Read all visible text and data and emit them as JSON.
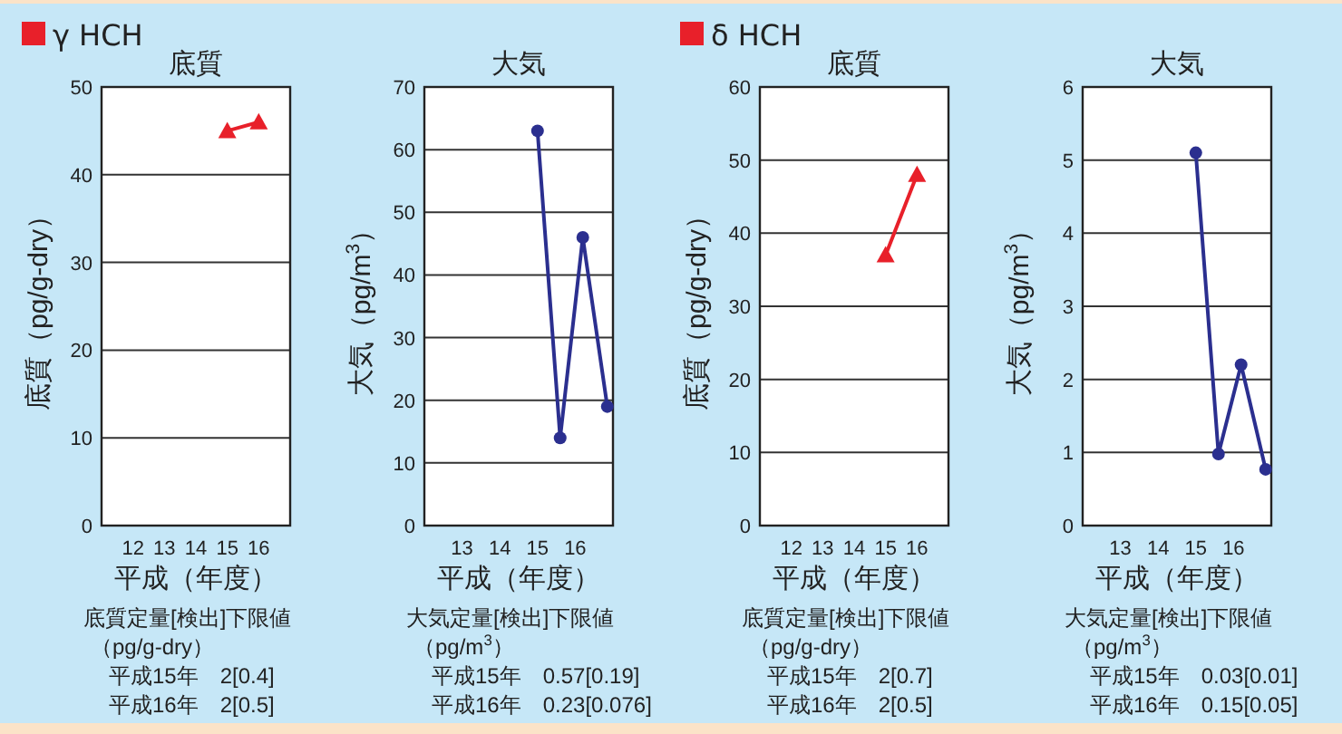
{
  "chart_data": [
    {
      "type": "line",
      "subtitle": "γ HCH",
      "title": "底質",
      "xlabel": "平成（年度）",
      "ylabel": "底質（pg/g-dry）",
      "xlim": [
        11,
        17
      ],
      "xticks": [
        12,
        13,
        14,
        15,
        16
      ],
      "ylim": [
        0,
        50
      ],
      "yticks": [
        0,
        10,
        20,
        30,
        40,
        50
      ],
      "grid": "y",
      "marker": "triangle",
      "line_style": "solid",
      "series": [
        {
          "color": "#e8202a",
          "x": [
            15,
            16
          ],
          "values": [
            45,
            46
          ]
        }
      ],
      "annotations": [
        "底質定量[検出]下限値",
        "（pg/g-dry）",
        "平成15年　2[0.4]",
        "平成16年　2[0.5]"
      ]
    },
    {
      "type": "line",
      "title": "大気",
      "xlabel": "平成（年度）",
      "ylabel": "大気（pg/m$^{3}$）",
      "xlim": [
        12,
        17
      ],
      "xticks": [
        13,
        14,
        15,
        16
      ],
      "ylim": [
        0,
        70
      ],
      "yticks": [
        0,
        10,
        20,
        30,
        40,
        50,
        60,
        70
      ],
      "grid": "y",
      "marker": "circle",
      "line_style": "solid",
      "series": [
        {
          "color": "#2b2f8f",
          "x": [
            15,
            15.6,
            16.2,
            16.85
          ],
          "values": [
            63,
            14,
            46,
            19
          ]
        }
      ],
      "annotations": [
        "大気定量[検出]下限値",
        "（pg/m$^{3}$）",
        "平成15年　0.57[0.19]",
        "平成16年　0.23[0.076]"
      ]
    },
    {
      "type": "line",
      "subtitle": "δ HCH",
      "title": "底質",
      "xlabel": "平成（年度）",
      "ylabel": "底質（pg/g-dry）",
      "xlim": [
        11,
        17
      ],
      "xticks": [
        12,
        13,
        14,
        15,
        16
      ],
      "ylim": [
        0,
        60
      ],
      "yticks": [
        0,
        10,
        20,
        30,
        40,
        50,
        60
      ],
      "grid": "y",
      "marker": "triangle",
      "line_style": "solid",
      "series": [
        {
          "color": "#e8202a",
          "x": [
            15,
            16
          ],
          "values": [
            37,
            48
          ]
        }
      ],
      "annotations": [
        "底質定量[検出]下限値",
        "（pg/g-dry）",
        "平成15年　2[0.7]",
        "平成16年　2[0.5]"
      ]
    },
    {
      "type": "line",
      "title": "大気",
      "xlabel": "平成（年度）",
      "ylabel": "大気（pg/m$^{3}$）",
      "xlim": [
        12,
        17
      ],
      "xticks": [
        13,
        14,
        15,
        16
      ],
      "ylim": [
        0,
        6
      ],
      "yticks": [
        0,
        1,
        2,
        3,
        4,
        5,
        6
      ],
      "grid": "y",
      "marker": "circle",
      "line_style": "solid",
      "series": [
        {
          "color": "#2b2f8f",
          "x": [
            15,
            15.6,
            16.2,
            16.85
          ],
          "values": [
            5.1,
            0.98,
            2.2,
            0.77
          ]
        }
      ],
      "annotations": [
        "大気定量[検出]下限値",
        "（pg/m$^{3}$）",
        "平成15年　0.03[0.01]",
        "平成16年　0.15[0.05]"
      ]
    }
  ]
}
